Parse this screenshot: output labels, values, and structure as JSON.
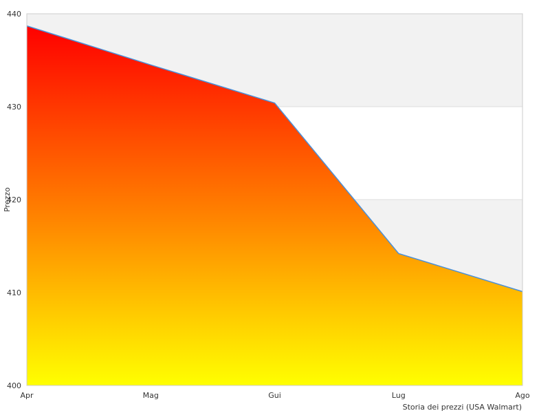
{
  "chart_data": {
    "type": "area",
    "title": "",
    "categories": [
      "Apr",
      "Mag",
      "Gui",
      "Lug",
      "Ago"
    ],
    "x": [
      0,
      1,
      2,
      3,
      4
    ],
    "values": [
      438.7,
      434.5,
      430.4,
      414.2,
      410.1
    ],
    "ylabel": "Prezzo",
    "xlabel": "Storia dei prezzi (USA Walmart)",
    "ylim": [
      400,
      440
    ],
    "yticks": [
      "440",
      "430",
      "420",
      "410",
      "400"
    ],
    "grid": true,
    "legend": "none",
    "colors": {
      "fill_top": "#ff0000",
      "fill_mid": "#ff8800",
      "fill_bottom": "#ffff00",
      "line": "#4a90d9",
      "band": "#f2f2f2",
      "grid": "#dddddd"
    }
  }
}
